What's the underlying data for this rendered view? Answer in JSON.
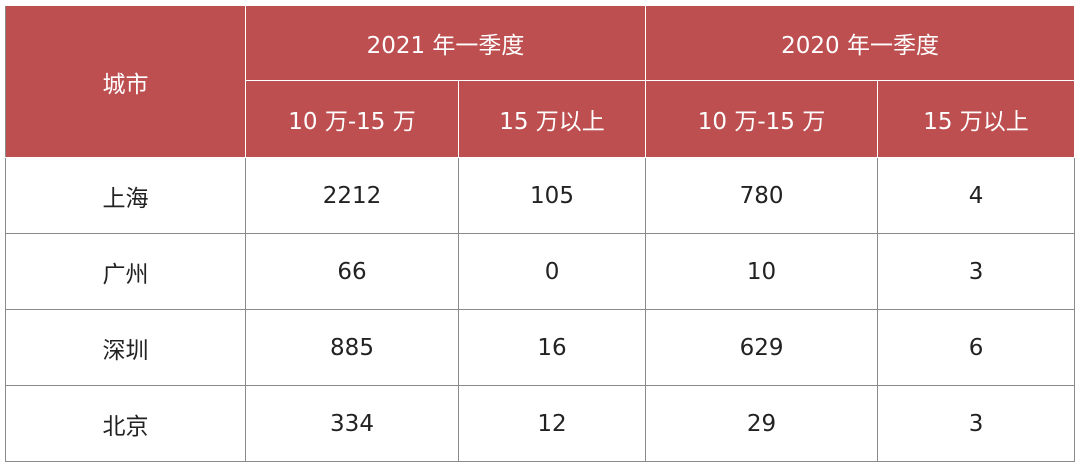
{
  "table": {
    "header": {
      "city": "城市",
      "groups": [
        "2021 年一季度",
        "2020 年一季度"
      ],
      "subheaders": [
        "10 万-15 万",
        "15 万以上",
        "10 万-15 万",
        "15 万以上"
      ]
    },
    "rows": [
      [
        "上海",
        2212,
        105,
        780,
        4
      ],
      [
        "广州",
        66,
        0,
        10,
        3
      ],
      [
        "深圳",
        885,
        16,
        629,
        6
      ],
      [
        "北京",
        334,
        12,
        29,
        3
      ]
    ]
  }
}
